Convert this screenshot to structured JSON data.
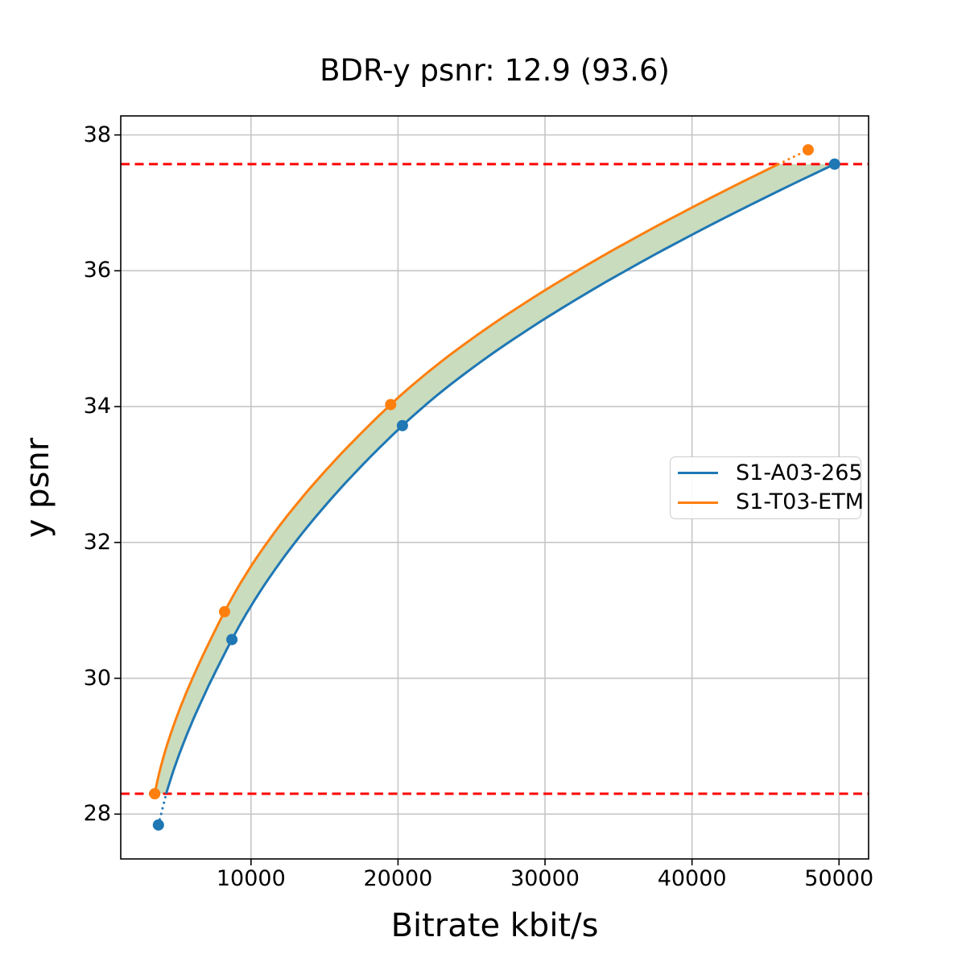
{
  "chart_data": {
    "type": "line",
    "title": "BDR-y psnr: 12.9 (93.6)",
    "xlabel": "Bitrate kbit/s",
    "ylabel": "y psnr",
    "xlim": [
      1138,
      52012
    ],
    "ylim": [
      27.34,
      38.28
    ],
    "xticks": [
      10000,
      20000,
      30000,
      40000,
      50000
    ],
    "yticks": [
      28,
      30,
      32,
      34,
      36,
      38
    ],
    "grid": true,
    "grid_color": "#c6c6c6",
    "legend_position": "center-right",
    "series": [
      {
        "name": "S1-A03-265",
        "color": "#1f77b4",
        "points": [
          [
            3700,
            27.84
          ],
          [
            8700,
            30.57
          ],
          [
            20300,
            33.72
          ],
          [
            49700,
            37.57
          ]
        ]
      },
      {
        "name": "S1-T03-ETM",
        "color": "#ff7f0e",
        "points": [
          [
            3450,
            28.3
          ],
          [
            8200,
            30.98
          ],
          [
            19500,
            34.03
          ],
          [
            47900,
            37.78
          ]
        ]
      }
    ],
    "overlap_interval": {
      "low": 28.3,
      "high": 37.57,
      "line_color": "#ff0000",
      "line_style": "dashed"
    },
    "fill_between_color": "#c9dcbe"
  }
}
